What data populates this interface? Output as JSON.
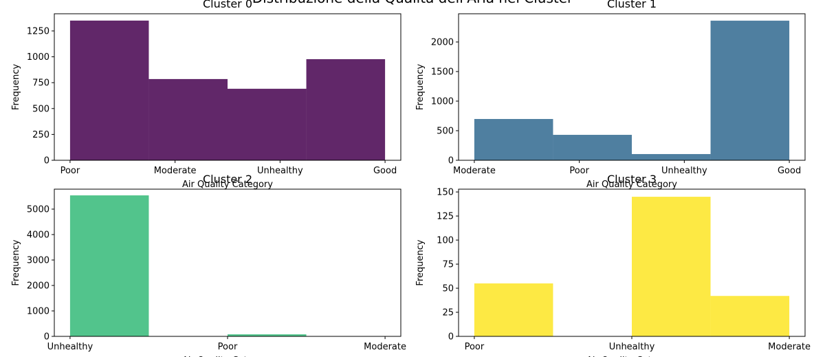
{
  "title": "Distribuzione della Qualità dell'Aria nei Cluster",
  "chart_data": [
    {
      "type": "histogram",
      "title": "Cluster 0",
      "xlabel": "Air Quality Category",
      "ylabel": "Frequency",
      "color": "#612769",
      "bins": [
        0,
        0.75,
        1.5,
        2.25,
        3
      ],
      "values": [
        1350,
        785,
        691,
        977
      ],
      "xlim": [
        -0.15,
        3.15
      ],
      "xticks": [
        {
          "value": 0,
          "label": "Poor"
        },
        {
          "value": 1,
          "label": "Moderate"
        },
        {
          "value": 2,
          "label": "Unhealthy"
        },
        {
          "value": 3,
          "label": "Good"
        }
      ],
      "ylim": [
        0,
        1416
      ],
      "yticks": [
        0,
        250,
        500,
        750,
        1000,
        1250
      ]
    },
    {
      "type": "histogram",
      "title": "Cluster 1",
      "xlabel": "Air Quality Category",
      "ylabel": "Frequency",
      "color": "#4f7fa0",
      "bins": [
        0,
        0.75,
        1.5,
        2.25,
        3
      ],
      "values": [
        698,
        430,
        105,
        2360
      ],
      "xlim": [
        -0.15,
        3.15
      ],
      "xticks": [
        {
          "value": 0,
          "label": "Moderate"
        },
        {
          "value": 1,
          "label": "Poor"
        },
        {
          "value": 2,
          "label": "Unhealthy"
        },
        {
          "value": 3,
          "label": "Good"
        }
      ],
      "ylim": [
        0,
        2477
      ],
      "yticks": [
        0,
        500,
        1000,
        1500,
        2000
      ]
    },
    {
      "type": "histogram",
      "title": "Cluster 2",
      "xlabel": "Air Quality Category",
      "ylabel": "Frequency",
      "color": "#52c48c",
      "bins": [
        0,
        0.5,
        1,
        1.5,
        2
      ],
      "values": [
        5540,
        0,
        80,
        0
      ],
      "xlim": [
        -0.1,
        2.1
      ],
      "xticks": [
        {
          "value": 0,
          "label": "Unhealthy"
        },
        {
          "value": 1,
          "label": "Poor"
        },
        {
          "value": 2,
          "label": "Moderate"
        }
      ],
      "ylim": [
        0,
        5784
      ],
      "yticks": [
        0,
        1000,
        2000,
        3000,
        4000,
        5000
      ]
    },
    {
      "type": "histogram",
      "title": "Cluster 3",
      "xlabel": "Air Quality Category",
      "ylabel": "Frequency",
      "color": "#fde944",
      "bins": [
        0,
        0.5,
        1,
        1.5,
        2
      ],
      "values": [
        55,
        0,
        145,
        42
      ],
      "xlim": [
        -0.1,
        2.1
      ],
      "xticks": [
        {
          "value": 0,
          "label": "Poor"
        },
        {
          "value": 1,
          "label": "Unhealthy"
        },
        {
          "value": 2,
          "label": "Moderate"
        }
      ],
      "ylim": [
        0,
        152.9
      ],
      "yticks": [
        0,
        25,
        50,
        75,
        100,
        125,
        150
      ]
    }
  ]
}
